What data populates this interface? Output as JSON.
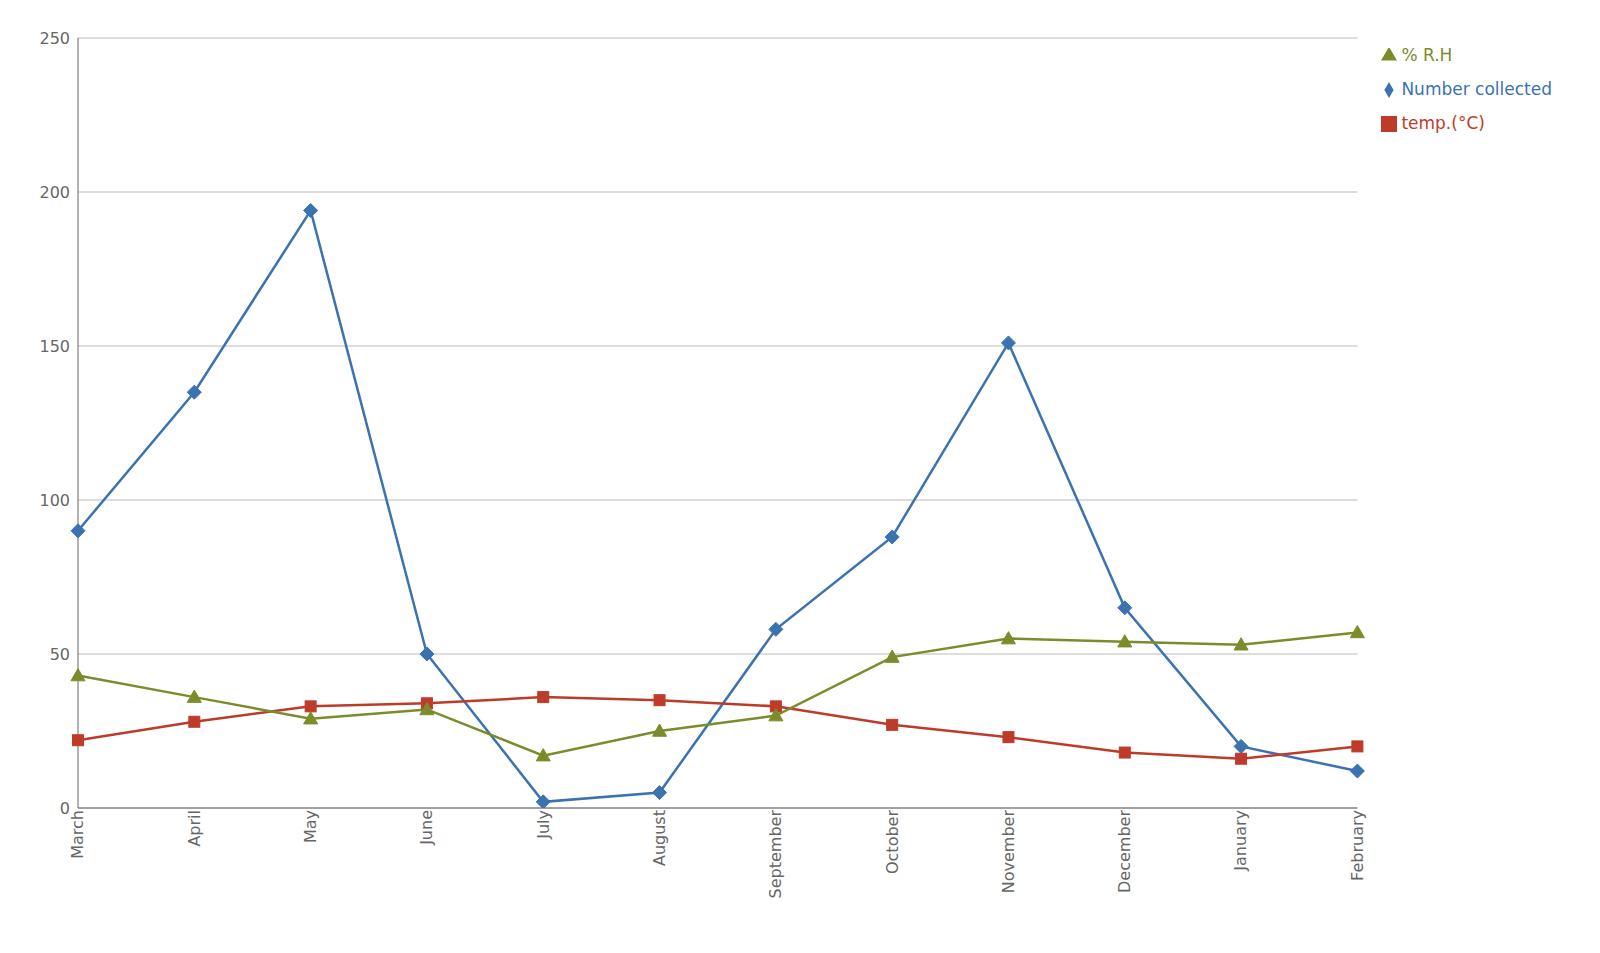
{
  "chart_data": {
    "type": "line",
    "categories": [
      "March",
      "April",
      "May",
      "June",
      "July",
      "August",
      "September",
      "October",
      "November",
      "December",
      "January",
      "February"
    ],
    "series": [
      {
        "name": "Number collected",
        "color": "#3B72B0",
        "marker": "diamond",
        "values": [
          90,
          135,
          194,
          50,
          2,
          5,
          58,
          88,
          151,
          65,
          20,
          12
        ]
      },
      {
        "name": "temp.(°C)",
        "color": "#BE3B2A",
        "marker": "square",
        "values": [
          22,
          28,
          33,
          34,
          36,
          35,
          33,
          27,
          23,
          18,
          16,
          20
        ]
      },
      {
        "name": "% R.H",
        "color": "#7B8C2A",
        "marker": "triangle",
        "values": [
          43,
          36,
          29,
          32,
          17,
          25,
          30,
          49,
          55,
          54,
          53,
          57
        ]
      }
    ],
    "ylim": [
      0,
      250
    ],
    "yticks": [
      0,
      50,
      100,
      150,
      200,
      250
    ],
    "grid": true,
    "legend": "upper right"
  }
}
